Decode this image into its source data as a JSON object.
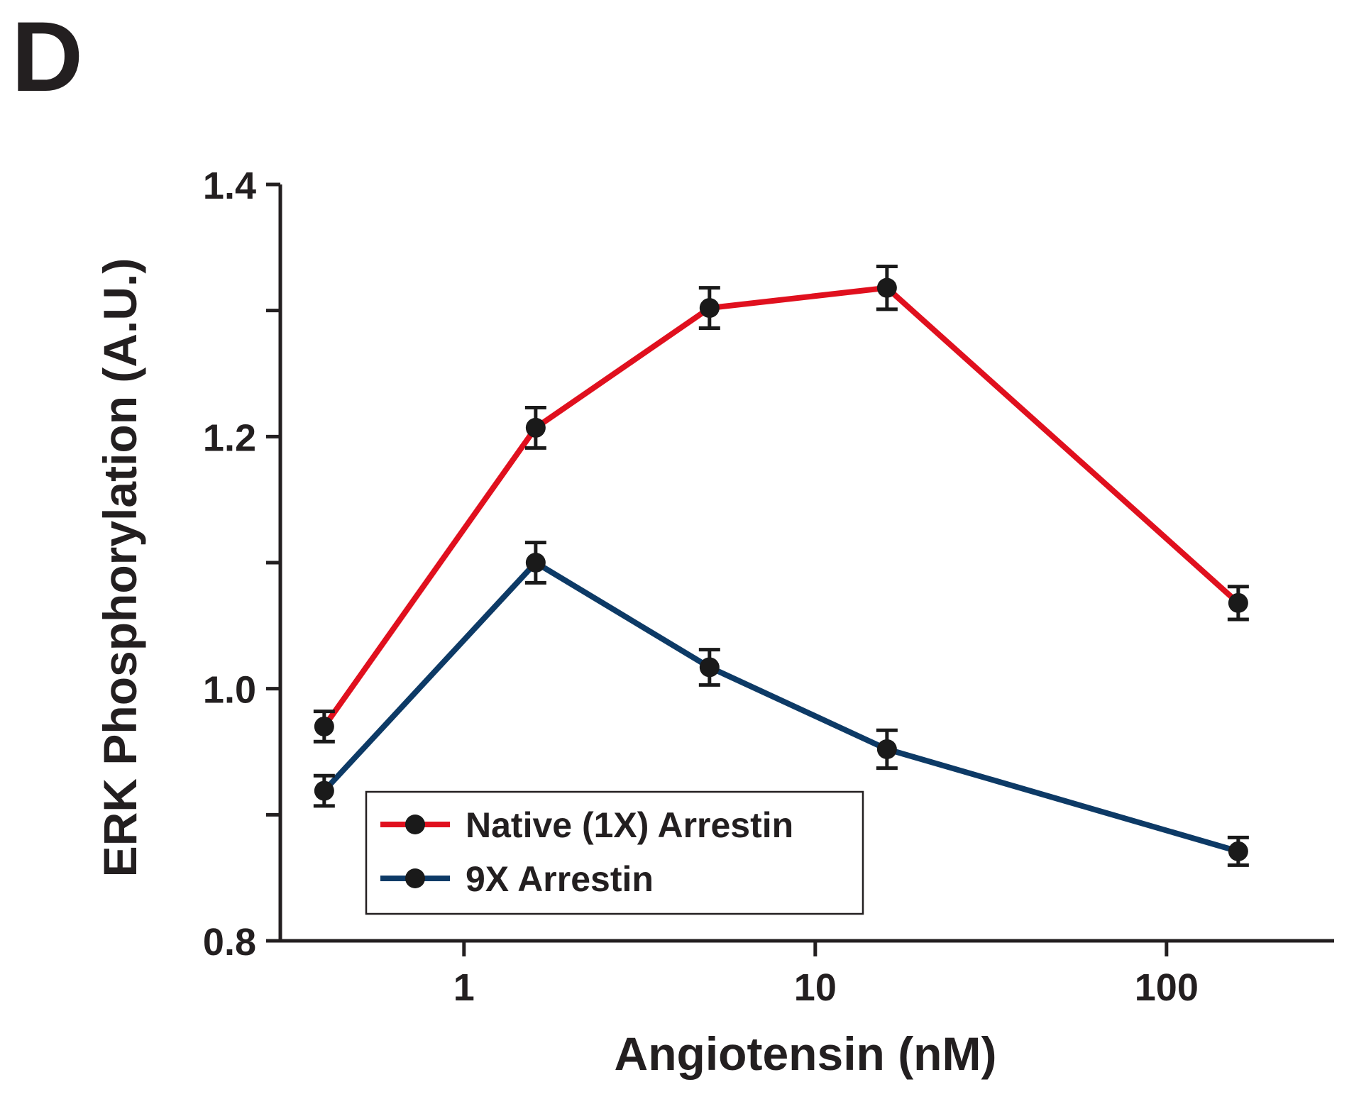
{
  "panel_label": "D",
  "colors": {
    "axis": "#231f20",
    "native": "#e0101e",
    "nine_x": "#0d3a66",
    "marker": "#1a1a1a"
  },
  "chart_data": {
    "type": "line",
    "title": "",
    "xlabel": "Angiotensin (nM)",
    "ylabel": "ERK Phosphorylation (A.U.)",
    "xscale": "log",
    "xlim": [
      0.3,
      300
    ],
    "ylim": [
      0.8,
      1.4
    ],
    "x_ticks": [
      {
        "value": 1,
        "label": "1"
      },
      {
        "value": 10,
        "label": "10"
      },
      {
        "value": 100,
        "label": "100"
      }
    ],
    "y_ticks": [
      {
        "value": 0.8,
        "label": "0.8"
      },
      {
        "value": 0.9,
        "label": ""
      },
      {
        "value": 1.0,
        "label": "1.0"
      },
      {
        "value": 1.1,
        "label": ""
      },
      {
        "value": 1.2,
        "label": "1.2"
      },
      {
        "value": 1.3,
        "label": ""
      },
      {
        "value": 1.4,
        "label": "1.4"
      }
    ],
    "x": [
      0.4,
      1.6,
      5,
      16,
      160
    ],
    "series": [
      {
        "name": "Native (1X) Arrestin",
        "color": "#e0101e",
        "values": [
          0.97,
          1.207,
          1.302,
          1.318,
          1.068
        ],
        "errors": [
          0.012,
          0.016,
          0.016,
          0.017,
          0.013
        ]
      },
      {
        "name": "9X Arrestin",
        "color": "#0d3a66",
        "values": [
          0.919,
          1.1,
          1.017,
          0.952,
          0.871
        ],
        "errors": [
          0.012,
          0.016,
          0.014,
          0.015,
          0.011
        ]
      }
    ],
    "grid": false,
    "legend": "bottom-center"
  }
}
